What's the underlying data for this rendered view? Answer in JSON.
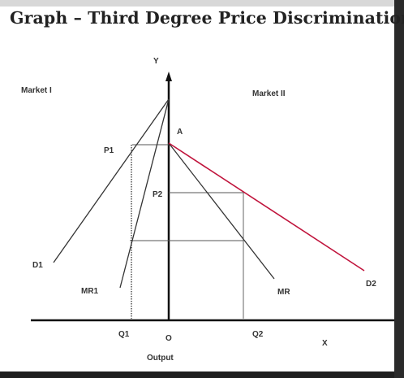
{
  "title": "Graph – Third Degree Price Discrimination",
  "diagram": {
    "axis_y_label": "Y",
    "axis_x_label": "X",
    "origin_label": "O",
    "x_axis_caption": "Output",
    "market_left_label": "Market I",
    "market_right_label": "Market II",
    "point_a_label": "A",
    "p1_label": "P1",
    "p2_label": "P2",
    "q1_label": "Q1",
    "q2_label": "Q2",
    "d1_label": "D1",
    "mr1_label": "MR1",
    "mr_label": "MR",
    "d2_label": "D2"
  },
  "colors": {
    "axis": "#111111",
    "curve": "#333333",
    "d2_curve": "#c0143c",
    "guide": "#555555"
  }
}
